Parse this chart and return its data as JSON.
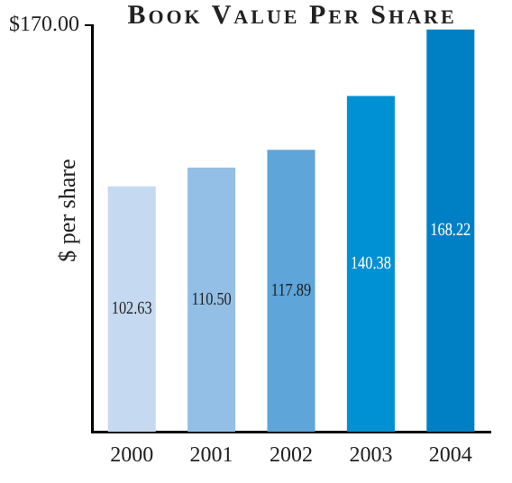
{
  "chart_data": {
    "type": "bar",
    "title": "Book Value Per Share",
    "ylabel": "$ per share",
    "categories": [
      "2000",
      "2001",
      "2002",
      "2003",
      "2004"
    ],
    "values": [
      102.63,
      110.5,
      117.89,
      140.38,
      168.22
    ],
    "colors": [
      "#c5daf0",
      "#93bfe6",
      "#5ea5d9",
      "#0090d4",
      "#0080c4"
    ],
    "ylim": [
      0,
      170
    ],
    "yticks": [
      {
        "value": 170,
        "label": "$170.00"
      }
    ],
    "value_labels": [
      "102.63",
      "110.50",
      "117.89",
      "140.38",
      "168.22"
    ],
    "grid": false,
    "legend": false
  }
}
